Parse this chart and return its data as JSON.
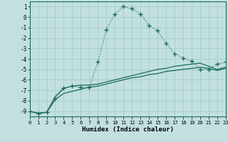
{
  "xlabel": "Humidex (Indice chaleur)",
  "bg_color": "#c2e0e0",
  "grid_color": "#aacece",
  "line_color": "#1a6b5a",
  "xlim": [
    0,
    23
  ],
  "ylim": [
    -9.5,
    1.5
  ],
  "yticks": [
    1,
    0,
    -1,
    -2,
    -3,
    -4,
    -5,
    -6,
    -7,
    -8,
    -9
  ],
  "xticks": [
    0,
    1,
    2,
    3,
    4,
    5,
    6,
    7,
    8,
    9,
    10,
    11,
    12,
    13,
    14,
    15,
    16,
    17,
    18,
    19,
    20,
    21,
    22,
    23
  ],
  "main_x": [
    0,
    1,
    2,
    3,
    4,
    5,
    6,
    7,
    8,
    9,
    10,
    11,
    12,
    13,
    14,
    15,
    16,
    17,
    18,
    19,
    20,
    21,
    22,
    23
  ],
  "main_y": [
    -9.0,
    -9.2,
    -9.1,
    -7.8,
    -6.8,
    -6.6,
    -6.7,
    -6.7,
    -4.3,
    -1.2,
    0.3,
    1.0,
    0.8,
    0.3,
    -0.8,
    -1.3,
    -2.5,
    -3.5,
    -3.9,
    -4.2,
    -5.0,
    -5.0,
    -4.5,
    -4.3
  ],
  "line2_x": [
    0,
    1,
    2,
    3,
    4,
    5,
    6,
    7,
    8,
    9,
    10,
    11,
    12,
    13,
    14,
    15,
    16,
    17,
    18,
    19,
    20,
    21,
    22,
    23
  ],
  "line2_y": [
    -9.0,
    -9.2,
    -9.1,
    -7.6,
    -6.8,
    -6.6,
    -6.5,
    -6.5,
    -6.4,
    -6.2,
    -6.0,
    -5.8,
    -5.6,
    -5.4,
    -5.2,
    -5.0,
    -4.9,
    -4.7,
    -4.6,
    -4.5,
    -4.4,
    -4.7,
    -5.0,
    -4.8
  ],
  "line3_x": [
    0,
    1,
    2,
    3,
    4,
    5,
    6,
    7,
    8,
    9,
    10,
    11,
    12,
    13,
    14,
    15,
    16,
    17,
    18,
    19,
    20,
    21,
    22,
    23
  ],
  "line3_y": [
    -9.0,
    -9.2,
    -9.1,
    -7.9,
    -7.3,
    -7.1,
    -6.9,
    -6.7,
    -6.6,
    -6.4,
    -6.2,
    -6.0,
    -5.8,
    -5.7,
    -5.5,
    -5.4,
    -5.2,
    -5.1,
    -5.0,
    -4.9,
    -4.8,
    -4.9,
    -5.1,
    -4.9
  ]
}
